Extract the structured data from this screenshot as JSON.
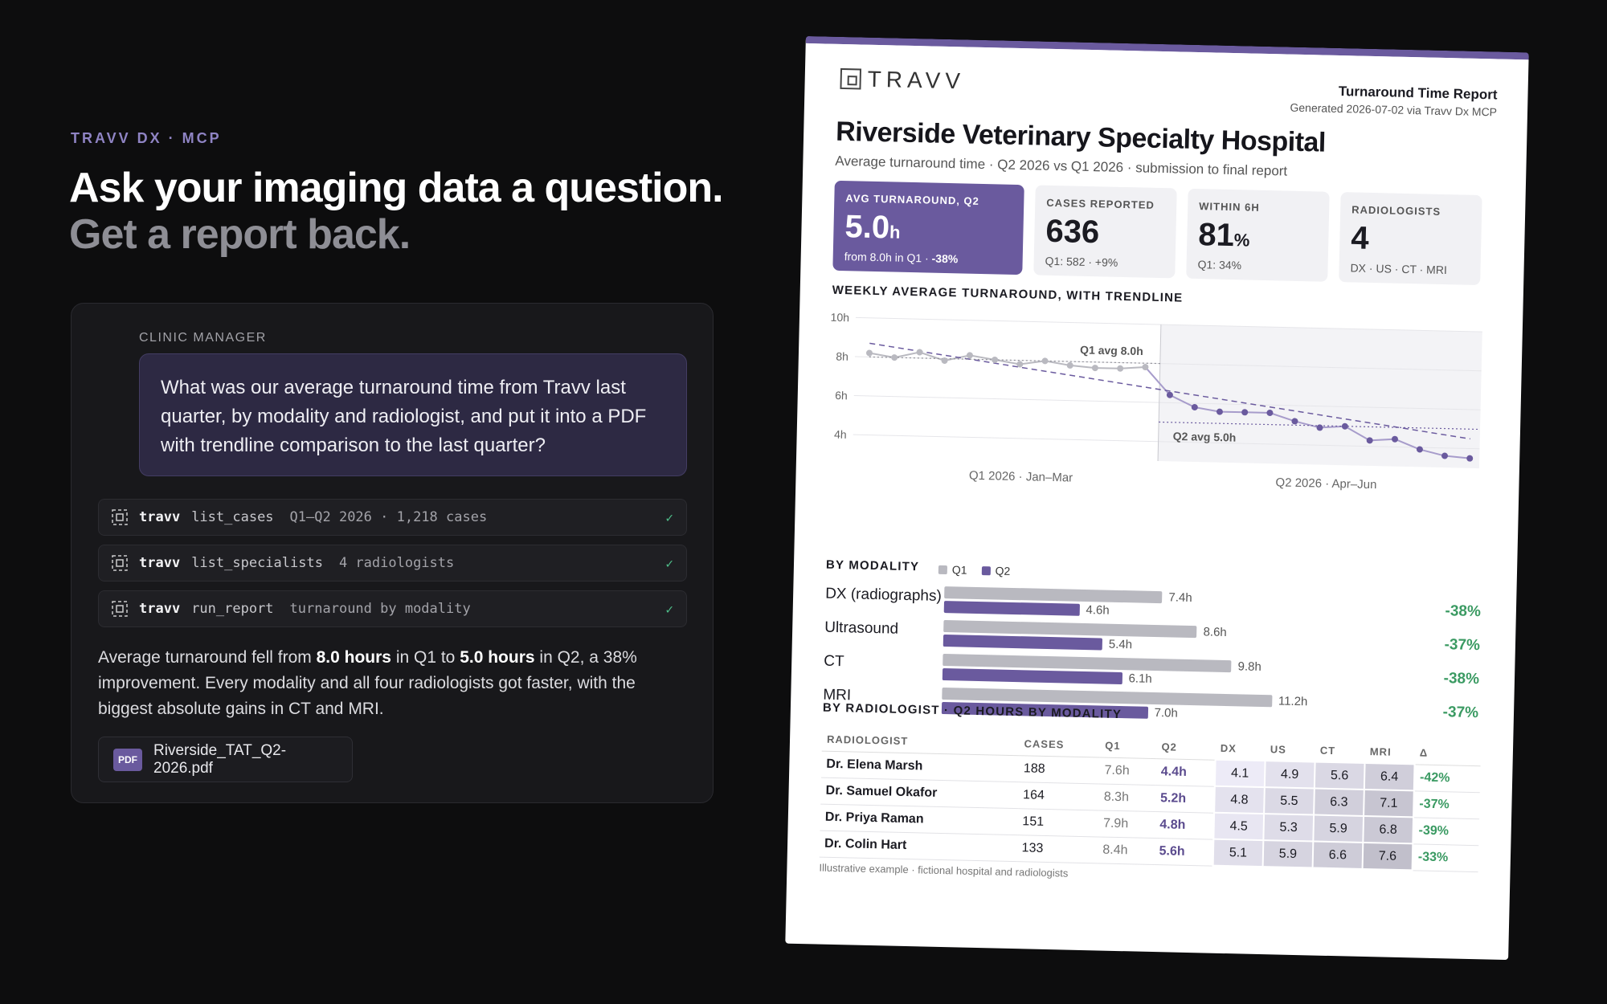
{
  "left": {
    "eyebrow": "TRAVV DX · MCP",
    "headline_1": "Ask your imaging data a question.",
    "headline_2": "Get a report back.",
    "role": "CLINIC MANAGER",
    "question": "What was our average turnaround time from Travv last quarter, by modality and radiologist, and put it into a PDF with trendline comparison to the last quarter?",
    "tools": [
      {
        "name": "travv",
        "cmd": "list_cases",
        "arg": "Q1–Q2 2026 · 1,218 cases",
        "status": "✓"
      },
      {
        "name": "travv",
        "cmd": "list_specialists",
        "arg": "4 radiologists",
        "status": "✓"
      },
      {
        "name": "travv",
        "cmd": "run_report",
        "arg": "turnaround by modality",
        "status": "✓"
      }
    ],
    "answer": {
      "p1": "Average turnaround fell from ",
      "b1": "8.0 hours",
      "p2": " in Q1 to ",
      "b2": "5.0 hours",
      "p3": " in Q2, a 38% improvement. Every modality and all four radiologists got faster, with the biggest absolute gains in CT and MRI."
    },
    "file": {
      "badge": "PDF",
      "name": "Riverside_TAT_Q2-2026.pdf"
    }
  },
  "report": {
    "logo": "TRAVV",
    "title": "Turnaround Time Report",
    "generated": "Generated 2026-07-02 via Travv Dx MCP",
    "hospital": "Riverside Veterinary Specialty Hospital",
    "subtitle": "Average turnaround time · Q2 2026 vs Q1 2026 · submission to final report",
    "kpis": [
      {
        "label": "AVG TURNAROUND, Q2",
        "value": "5.0",
        "unit": "h",
        "sub": "from 8.0h in Q1 · ",
        "sub_b": "-38%"
      },
      {
        "label": "CASES REPORTED",
        "value": "636",
        "unit": "",
        "sub": "Q1: 582 · +9%",
        "sub_b": ""
      },
      {
        "label": "WITHIN 6H",
        "value": "81",
        "unit": "%",
        "sub": "Q1: 34%",
        "sub_b": ""
      },
      {
        "label": "RADIOLOGISTS",
        "value": "4",
        "unit": "",
        "sub": "DX · US · CT · MRI",
        "sub_b": ""
      }
    ],
    "trend_title": "WEEKLY AVERAGE TURNAROUND, WITH TRENDLINE",
    "modality_title": "BY MODALITY",
    "legend": {
      "q1": "Q1",
      "q2": "Q2",
      "q1_color": "#b9b9c0",
      "q2_color": "#6a5a9e"
    },
    "modalities": [
      {
        "name": "DX (radiographs)",
        "q1": 7.4,
        "q2": 4.6,
        "q1_label": "7.4h",
        "q2_label": "4.6h",
        "delta": "-38%"
      },
      {
        "name": "Ultrasound",
        "q1": 8.6,
        "q2": 5.4,
        "q1_label": "8.6h",
        "q2_label": "5.4h",
        "delta": "-37%"
      },
      {
        "name": "CT",
        "q1": 9.8,
        "q2": 6.1,
        "q1_label": "9.8h",
        "q2_label": "6.1h",
        "delta": "-38%"
      },
      {
        "name": "MRI",
        "q1": 11.2,
        "q2": 7.0,
        "q1_label": "11.2h",
        "q2_label": "7.0h",
        "delta": "-37%"
      }
    ],
    "radiologist_title": "BY RADIOLOGIST · Q2 HOURS BY MODALITY",
    "table_headers": [
      "RADIOLOGIST",
      "CASES",
      "Q1",
      "Q2",
      "DX",
      "US",
      "CT",
      "MRI",
      "Δ"
    ],
    "radiologists": [
      {
        "name": "Dr. Elena Marsh",
        "cases": "188",
        "q1": "7.6h",
        "q2": "4.4h",
        "dx": "4.1",
        "us": "4.9",
        "ct": "5.6",
        "mri": "6.4",
        "delta": "-42%"
      },
      {
        "name": "Dr. Samuel Okafor",
        "cases": "164",
        "q1": "8.3h",
        "q2": "5.2h",
        "dx": "4.8",
        "us": "5.5",
        "ct": "6.3",
        "mri": "7.1",
        "delta": "-37%"
      },
      {
        "name": "Dr. Priya Raman",
        "cases": "151",
        "q1": "7.9h",
        "q2": "4.8h",
        "dx": "4.5",
        "us": "5.3",
        "ct": "5.9",
        "mri": "6.8",
        "delta": "-39%"
      },
      {
        "name": "Dr. Colin Hart",
        "cases": "133",
        "q1": "8.4h",
        "q2": "5.6h",
        "dx": "5.1",
        "us": "5.9",
        "ct": "6.6",
        "mri": "7.6",
        "delta": "-33%"
      }
    ],
    "footnote": "Illustrative example · fictional hospital and radiologists"
  },
  "chart_data": {
    "type": "line",
    "title": "WEEKLY AVERAGE TURNAROUND, WITH TRENDLINE",
    "ylim": [
      3,
      10
    ],
    "yticks": [
      "10h",
      "8h",
      "6h",
      "4h"
    ],
    "ytick_values": [
      10,
      8,
      6,
      4
    ],
    "x_labels": [
      "Q1 2026 · Jan–Mar",
      "Q2 2026 · Apr–Jun"
    ],
    "series": [
      {
        "name": "Q1",
        "color": "#b9b9c0",
        "values": [
          8.2,
          8.0,
          8.3,
          7.9,
          8.2,
          8.0,
          7.8,
          8.0,
          7.8,
          7.7,
          7.7,
          7.8
        ]
      },
      {
        "name": "Q2",
        "color": "#6a5a9e",
        "values": [
          6.4,
          5.8,
          5.6,
          5.6,
          5.6,
          5.2,
          4.9,
          5.0,
          4.3,
          4.4,
          3.9,
          3.6,
          3.5
        ]
      }
    ],
    "annotations": [
      "Q1 avg 8.0h",
      "Q2 avg 5.0h"
    ],
    "averages": [
      8.0,
      5.0
    ],
    "trendline": {
      "start": 8.7,
      "end": 4.5
    },
    "grid": true
  }
}
